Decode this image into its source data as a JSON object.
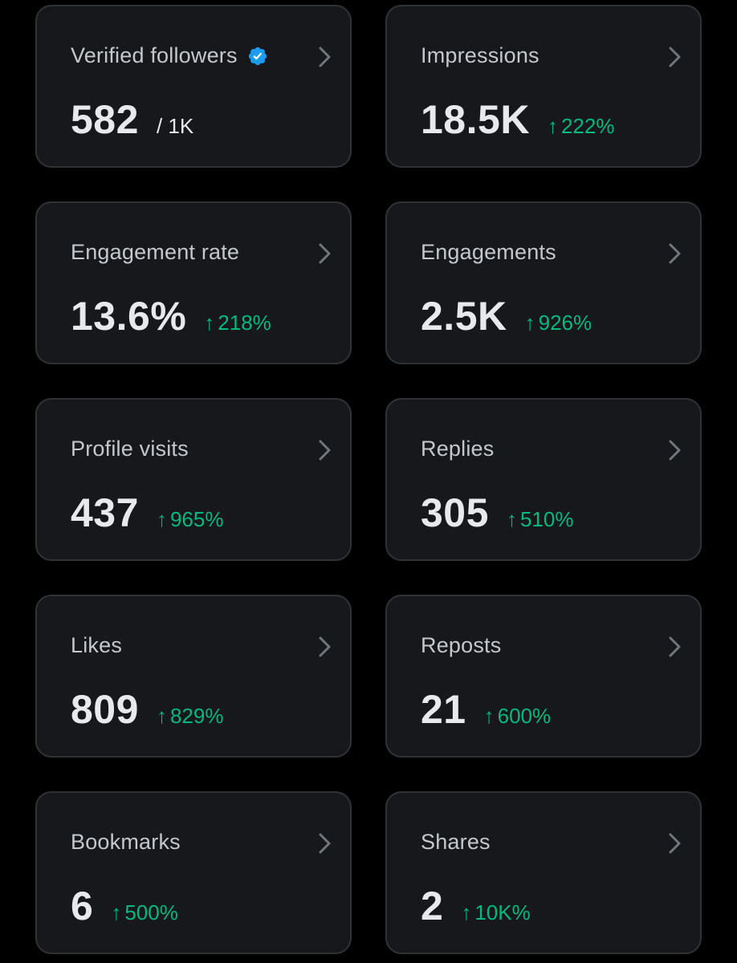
{
  "colors": {
    "background": "#000000",
    "card": "#16181c",
    "border": "#2f3336",
    "title": "#c4c8cc",
    "value": "#e7e9ea",
    "positive": "#00ba7c",
    "verified": "#1d9bf0",
    "chevron": "#71767b"
  },
  "cards": [
    {
      "title": "Verified followers",
      "value": "582",
      "sub": "/ 1K",
      "change": null,
      "icon": "verified-badge-icon"
    },
    {
      "title": "Impressions",
      "value": "18.5K",
      "change": "222%"
    },
    {
      "title": "Engagement rate",
      "value": "13.6%",
      "change": "218%"
    },
    {
      "title": "Engagements",
      "value": "2.5K",
      "change": "926%"
    },
    {
      "title": "Profile visits",
      "value": "437",
      "change": "965%"
    },
    {
      "title": "Replies",
      "value": "305",
      "change": "510%"
    },
    {
      "title": "Likes",
      "value": "809",
      "change": "829%"
    },
    {
      "title": "Reposts",
      "value": "21",
      "change": "600%"
    },
    {
      "title": "Bookmarks",
      "value": "6",
      "change": "500%"
    },
    {
      "title": "Shares",
      "value": "2",
      "change": "10K%"
    }
  ],
  "arrow_glyph": "↑"
}
